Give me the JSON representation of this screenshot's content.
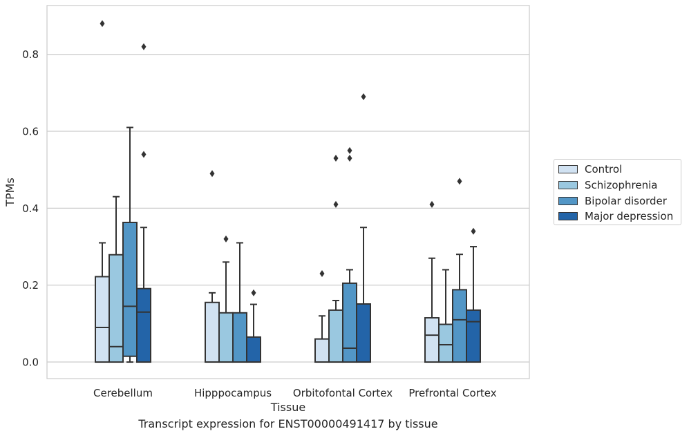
{
  "chart_data": {
    "type": "boxplot",
    "title": "",
    "caption": "Transcript expression for ENST00000491417 by tissue",
    "xlabel": "Tissue",
    "ylabel": "TPMs",
    "ylim": [
      -0.043,
      0.927
    ],
    "yticks": [
      0.0,
      0.2,
      0.4,
      0.6,
      0.8
    ],
    "ytick_labels": [
      "0.0",
      "0.2",
      "0.4",
      "0.6",
      "0.8"
    ],
    "grid": true,
    "legend_position": "right",
    "categories": [
      "Cerebellum",
      "Hipppocampus",
      "Orbitofontal Cortex",
      "Prefrontal Cortex"
    ],
    "series": [
      {
        "name": "Control",
        "color": "#d1e2f2",
        "boxes": [
          {
            "whisker_low": 0.0,
            "q1": 0.0,
            "median": 0.09,
            "q3": 0.222,
            "whisker_high": 0.31,
            "outliers": [
              0.88
            ]
          },
          {
            "whisker_low": 0.0,
            "q1": 0.0,
            "median": 0.0,
            "q3": 0.155,
            "whisker_high": 0.18,
            "outliers": [
              0.49
            ]
          },
          {
            "whisker_low": 0.0,
            "q1": 0.0,
            "median": 0.0,
            "q3": 0.06,
            "whisker_high": 0.12,
            "outliers": [
              0.23
            ]
          },
          {
            "whisker_low": 0.0,
            "q1": 0.0,
            "median": 0.07,
            "q3": 0.115,
            "whisker_high": 0.27,
            "outliers": [
              0.41
            ]
          }
        ]
      },
      {
        "name": "Schizophrenia",
        "color": "#9ac8e0",
        "boxes": [
          {
            "whisker_low": 0.0,
            "q1": 0.0,
            "median": 0.04,
            "q3": 0.279,
            "whisker_high": 0.43,
            "outliers": []
          },
          {
            "whisker_low": 0.0,
            "q1": 0.0,
            "median": 0.0,
            "q3": 0.128,
            "whisker_high": 0.26,
            "outliers": [
              0.32
            ]
          },
          {
            "whisker_low": 0.0,
            "q1": 0.0,
            "median": 0.0,
            "q3": 0.135,
            "whisker_high": 0.16,
            "outliers": [
              0.41,
              0.53
            ]
          },
          {
            "whisker_low": 0.0,
            "q1": 0.0,
            "median": 0.045,
            "q3": 0.098,
            "whisker_high": 0.24,
            "outliers": []
          }
        ]
      },
      {
        "name": "Bipolar disorder",
        "color": "#5296c6",
        "boxes": [
          {
            "whisker_low": 0.0,
            "q1": 0.015,
            "median": 0.145,
            "q3": 0.363,
            "whisker_high": 0.61,
            "outliers": []
          },
          {
            "whisker_low": 0.0,
            "q1": 0.0,
            "median": 0.0,
            "q3": 0.128,
            "whisker_high": 0.31,
            "outliers": []
          },
          {
            "whisker_low": 0.0,
            "q1": 0.0,
            "median": 0.036,
            "q3": 0.205,
            "whisker_high": 0.24,
            "outliers": [
              0.53,
              0.55
            ]
          },
          {
            "whisker_low": 0.0,
            "q1": 0.0,
            "median": 0.11,
            "q3": 0.188,
            "whisker_high": 0.28,
            "outliers": [
              0.47
            ]
          }
        ]
      },
      {
        "name": "Major depression",
        "color": "#2364a8",
        "boxes": [
          {
            "whisker_low": 0.0,
            "q1": 0.0,
            "median": 0.13,
            "q3": 0.191,
            "whisker_high": 0.35,
            "outliers": [
              0.54,
              0.82
            ]
          },
          {
            "whisker_low": 0.0,
            "q1": 0.0,
            "median": 0.0,
            "q3": 0.065,
            "whisker_high": 0.15,
            "outliers": [
              0.18
            ]
          },
          {
            "whisker_low": 0.0,
            "q1": 0.0,
            "median": 0.0,
            "q3": 0.151,
            "whisker_high": 0.35,
            "outliers": [
              0.69
            ]
          },
          {
            "whisker_low": 0.0,
            "q1": 0.0,
            "median": 0.105,
            "q3": 0.135,
            "whisker_high": 0.3,
            "outliers": [
              0.34
            ]
          }
        ]
      }
    ]
  }
}
